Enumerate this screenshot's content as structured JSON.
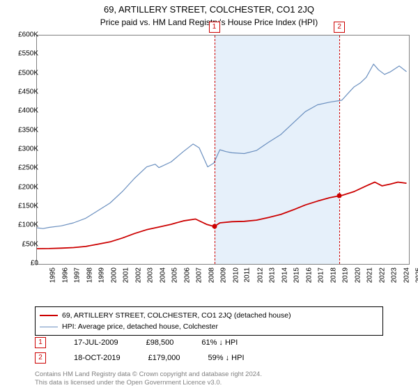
{
  "header": {
    "address": "69, ARTILLERY STREET, COLCHESTER, CO1 2JQ",
    "subtitle": "Price paid vs. HM Land Registry's House Price Index (HPI)"
  },
  "chart": {
    "type": "line",
    "background_color": "#ffffff",
    "border_color": "#808080",
    "shaded_band_color": "#e6f0fa",
    "y_axis": {
      "min": 0,
      "max": 600000,
      "tick_step": 50000,
      "tick_prefix": "£",
      "tick_format": "K",
      "ticks": [
        0,
        50000,
        100000,
        150000,
        200000,
        250000,
        300000,
        350000,
        400000,
        450000,
        500000,
        550000,
        600000
      ]
    },
    "x_axis": {
      "min": 1995,
      "max": 2025.5,
      "ticks": [
        1995,
        1996,
        1997,
        1998,
        1999,
        2000,
        2001,
        2002,
        2003,
        2004,
        2005,
        2006,
        2007,
        2008,
        2009,
        2010,
        2011,
        2012,
        2013,
        2014,
        2015,
        2016,
        2017,
        2018,
        2019,
        2020,
        2021,
        2022,
        2023,
        2024,
        2025
      ]
    },
    "shaded_band": {
      "from_x": 2009.54,
      "to_x": 2019.8
    },
    "markers": [
      {
        "id": "1",
        "x": 2009.54,
        "y": 98500
      },
      {
        "id": "2",
        "x": 2019.8,
        "y": 179000
      }
    ],
    "series": [
      {
        "name": "price_paid",
        "label": "69, ARTILLERY STREET, COLCHESTER, CO1 2JQ (detached house)",
        "color": "#cc0000",
        "line_width": 1.8,
        "points": [
          [
            1995,
            40000
          ],
          [
            1996,
            40500
          ],
          [
            1997,
            41500
          ],
          [
            1998,
            43000
          ],
          [
            1999,
            46000
          ],
          [
            2000,
            52000
          ],
          [
            2001,
            58000
          ],
          [
            2002,
            68000
          ],
          [
            2003,
            80000
          ],
          [
            2004,
            90000
          ],
          [
            2005,
            97000
          ],
          [
            2006,
            104000
          ],
          [
            2007,
            113000
          ],
          [
            2008,
            118000
          ],
          [
            2008.9,
            104000
          ],
          [
            2009.54,
            98500
          ],
          [
            2010,
            108000
          ],
          [
            2011,
            111000
          ],
          [
            2012,
            112000
          ],
          [
            2013,
            115000
          ],
          [
            2014,
            122000
          ],
          [
            2015,
            130000
          ],
          [
            2016,
            142000
          ],
          [
            2017,
            155000
          ],
          [
            2018,
            165000
          ],
          [
            2019,
            174000
          ],
          [
            2019.8,
            179000
          ],
          [
            2020,
            180000
          ],
          [
            2021,
            190000
          ],
          [
            2022,
            205000
          ],
          [
            2022.7,
            215000
          ],
          [
            2023.3,
            205000
          ],
          [
            2024,
            210000
          ],
          [
            2024.6,
            215000
          ],
          [
            2025.3,
            212000
          ]
        ]
      },
      {
        "name": "hpi",
        "label": "HPI: Average price, detached house, Colchester",
        "color": "#6a8fbf",
        "line_width": 1.2,
        "points": [
          [
            1995,
            95000
          ],
          [
            1995.5,
            93000
          ],
          [
            1996,
            96000
          ],
          [
            1997,
            100000
          ],
          [
            1998,
            108000
          ],
          [
            1999,
            120000
          ],
          [
            2000,
            140000
          ],
          [
            2001,
            160000
          ],
          [
            2002,
            190000
          ],
          [
            2003,
            225000
          ],
          [
            2004,
            255000
          ],
          [
            2004.7,
            262000
          ],
          [
            2005,
            253000
          ],
          [
            2006,
            268000
          ],
          [
            2007,
            295000
          ],
          [
            2007.8,
            315000
          ],
          [
            2008.3,
            305000
          ],
          [
            2009,
            255000
          ],
          [
            2009.5,
            265000
          ],
          [
            2010,
            300000
          ],
          [
            2010.5,
            295000
          ],
          [
            2011,
            292000
          ],
          [
            2012,
            290000
          ],
          [
            2013,
            298000
          ],
          [
            2014,
            320000
          ],
          [
            2015,
            340000
          ],
          [
            2016,
            370000
          ],
          [
            2017,
            400000
          ],
          [
            2018,
            418000
          ],
          [
            2019,
            425000
          ],
          [
            2020,
            430000
          ],
          [
            2020.7,
            455000
          ],
          [
            2021,
            465000
          ],
          [
            2021.5,
            475000
          ],
          [
            2022,
            490000
          ],
          [
            2022.6,
            525000
          ],
          [
            2023,
            510000
          ],
          [
            2023.5,
            498000
          ],
          [
            2024,
            505000
          ],
          [
            2024.7,
            520000
          ],
          [
            2025.3,
            505000
          ]
        ]
      }
    ]
  },
  "legend": {
    "rows": [
      {
        "color": "#cc0000",
        "width": 2,
        "label_path": "chart.series.0.label"
      },
      {
        "color": "#6a8fbf",
        "width": 1,
        "label_path": "chart.series.1.label"
      }
    ]
  },
  "info_rows": [
    {
      "id": "1",
      "date": "17-JUL-2009",
      "price": "£98,500",
      "vs_hpi": "61% ↓ HPI"
    },
    {
      "id": "2",
      "date": "18-OCT-2019",
      "price": "£179,000",
      "vs_hpi": "59% ↓ HPI"
    }
  ],
  "footer": {
    "line1": "Contains HM Land Registry data © Crown copyright and database right 2024.",
    "line2": "This data is licensed under the Open Government Licence v3.0."
  }
}
